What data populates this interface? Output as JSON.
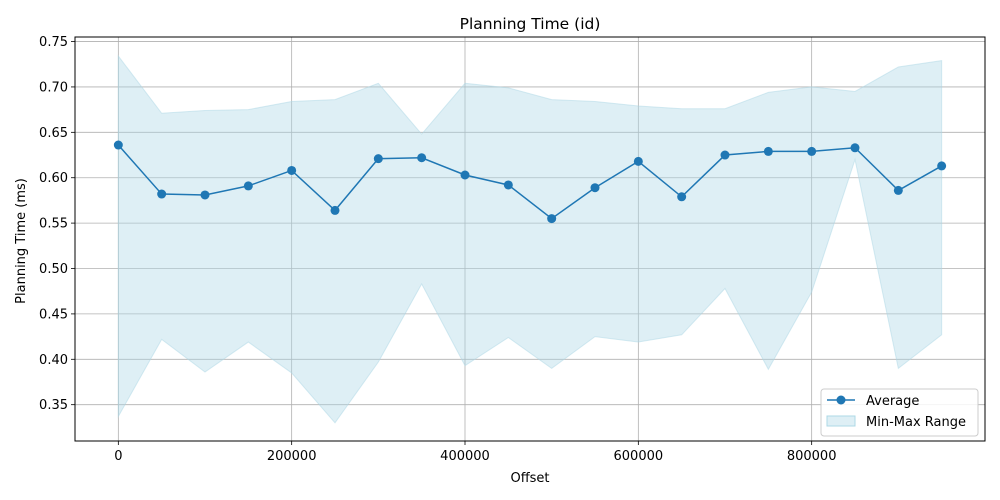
{
  "chart_data": {
    "type": "line",
    "title": "Planning Time (id)",
    "xlabel": "Offset",
    "ylabel": "Planning Time (ms)",
    "x": [
      0,
      50000,
      100000,
      150000,
      200000,
      250000,
      300000,
      350000,
      400000,
      450000,
      500000,
      550000,
      600000,
      650000,
      700000,
      750000,
      800000,
      850000,
      900000,
      950000
    ],
    "series": [
      {
        "name": "Average",
        "values": [
          0.636,
          0.582,
          0.581,
          0.591,
          0.608,
          0.564,
          0.621,
          0.622,
          0.603,
          0.592,
          0.555,
          0.589,
          0.618,
          0.579,
          0.625,
          0.629,
          0.629,
          0.633,
          0.586,
          0.613
        ],
        "color": "#1f77b4"
      }
    ],
    "range": {
      "name": "Min-Max Range",
      "min": [
        0.337,
        0.422,
        0.386,
        0.419,
        0.385,
        0.33,
        0.397,
        0.483,
        0.393,
        0.424,
        0.39,
        0.425,
        0.419,
        0.427,
        0.478,
        0.389,
        0.474,
        0.62,
        0.39,
        0.427
      ],
      "max": [
        0.734,
        0.671,
        0.674,
        0.675,
        0.684,
        0.686,
        0.704,
        0.648,
        0.704,
        0.699,
        0.686,
        0.684,
        0.679,
        0.676,
        0.676,
        0.694,
        0.7,
        0.695,
        0.722,
        0.729
      ],
      "color": "#add8e6"
    },
    "xlim": [
      -50000,
      1000000
    ],
    "ylim": [
      0.31,
      0.755
    ],
    "xticks": [
      0,
      200000,
      400000,
      600000,
      800000
    ],
    "xtick_labels": [
      "0",
      "200000",
      "400000",
      "600000",
      "800000"
    ],
    "yticks": [
      0.35,
      0.4,
      0.45,
      0.5,
      0.55,
      0.6,
      0.65,
      0.7,
      0.75
    ],
    "ytick_labels": [
      "0.35",
      "0.40",
      "0.45",
      "0.50",
      "0.55",
      "0.60",
      "0.65",
      "0.70",
      "0.75"
    ],
    "grid": true,
    "legend_position": "lower right"
  }
}
